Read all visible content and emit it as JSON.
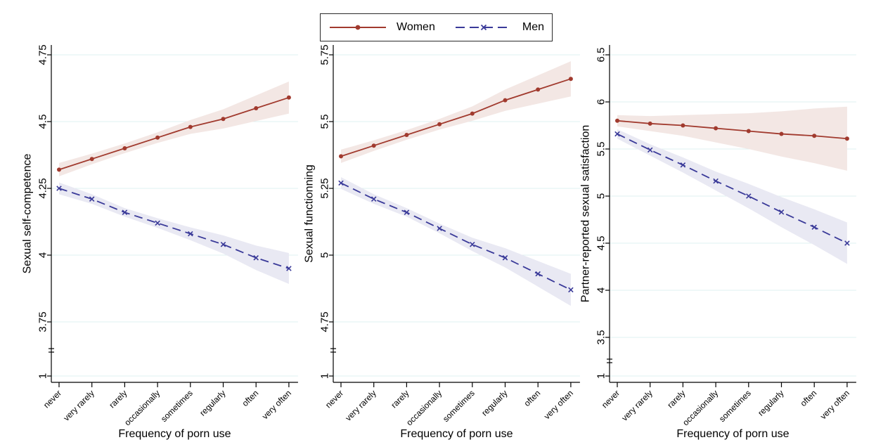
{
  "figure": {
    "background": "#ffffff",
    "grid_color": "#dff0f1",
    "axis_color": "#000000"
  },
  "legend": {
    "items": [
      {
        "label": "Women",
        "color": "#a13a2e",
        "line_style": "solid",
        "marker": "circle"
      },
      {
        "label": "Men",
        "color": "#3a3a99",
        "line_style": "dashed",
        "marker": "x"
      }
    ]
  },
  "chart_data": [
    {
      "type": "line",
      "panel": "sexual-self-competence",
      "ylabel": "Sexual self-competence",
      "xlabel": "Frequency of porn use",
      "categories": [
        "never",
        "very rarely",
        "rarely",
        "occasionally",
        "sometimes",
        "regularly",
        "often",
        "very often"
      ],
      "yticks": [
        "4.75",
        "4.5",
        "4.25",
        "4",
        "3.75"
      ],
      "ytick_values": [
        4.75,
        4.5,
        4.25,
        4.0,
        3.75
      ],
      "y_break_label": "1",
      "ylim": [
        3.75,
        4.75
      ],
      "axis_break": true,
      "grid": true,
      "legend_position": "top-center",
      "series": [
        {
          "name": "Women",
          "color": "#a13a2e",
          "band_color": "#f3e7e4",
          "style": "solid",
          "marker": "circle",
          "values": [
            4.32,
            4.36,
            4.4,
            4.44,
            4.48,
            4.51,
            4.55,
            4.59
          ],
          "ci_half": [
            0.025,
            0.02,
            0.018,
            0.02,
            0.026,
            0.036,
            0.048,
            0.06
          ]
        },
        {
          "name": "Men",
          "color": "#3a3a99",
          "band_color": "#e9e9f3",
          "style": "dashed",
          "marker": "x",
          "values": [
            4.25,
            4.21,
            4.16,
            4.12,
            4.08,
            4.04,
            3.99,
            3.95
          ],
          "ci_half": [
            0.022,
            0.018,
            0.016,
            0.018,
            0.024,
            0.034,
            0.046,
            0.058
          ]
        }
      ]
    },
    {
      "type": "line",
      "panel": "sexual-functionning",
      "ylabel": "Sexual functionning",
      "xlabel": "Frequency of porn use",
      "categories": [
        "never",
        "very rarely",
        "rarely",
        "occasionally",
        "sometimes",
        "regularly",
        "often",
        "very often"
      ],
      "yticks": [
        "5.75",
        "5.5",
        "5.25",
        "5",
        "4.75"
      ],
      "ytick_values": [
        5.75,
        5.5,
        5.25,
        5.0,
        4.75
      ],
      "y_break_label": "1",
      "ylim": [
        4.75,
        5.75
      ],
      "axis_break": true,
      "grid": true,
      "series": [
        {
          "name": "Women",
          "color": "#a13a2e",
          "band_color": "#f3e7e4",
          "style": "solid",
          "marker": "circle",
          "values": [
            5.37,
            5.41,
            5.45,
            5.49,
            5.53,
            5.58,
            5.62,
            5.66
          ],
          "ci_half": [
            0.025,
            0.02,
            0.018,
            0.02,
            0.027,
            0.04,
            0.053,
            0.066
          ]
        },
        {
          "name": "Men",
          "color": "#3a3a99",
          "band_color": "#e9e9f3",
          "style": "dashed",
          "marker": "x",
          "values": [
            5.27,
            5.21,
            5.16,
            5.1,
            5.04,
            4.99,
            4.93,
            4.87
          ],
          "ci_half": [
            0.022,
            0.018,
            0.016,
            0.018,
            0.025,
            0.036,
            0.048,
            0.06
          ]
        }
      ]
    },
    {
      "type": "line",
      "panel": "partner-reported-sexual-satisfaction",
      "ylabel": "Partner-reported sexual satisfaction",
      "xlabel": "Frequency of porn use",
      "categories": [
        "never",
        "very rarely",
        "rarely",
        "occasionally",
        "sometimes",
        "regularly",
        "often",
        "very often"
      ],
      "yticks": [
        "6.5",
        "6",
        "5.5",
        "5",
        "4.5",
        "4",
        "3.5"
      ],
      "ytick_values": [
        6.5,
        6.0,
        5.5,
        5.0,
        4.5,
        4.0,
        3.5
      ],
      "y_break_label": "1",
      "ylim": [
        3.5,
        6.5
      ],
      "axis_break": true,
      "grid": true,
      "series": [
        {
          "name": "Women",
          "color": "#a13a2e",
          "band_color": "#f3e7e4",
          "style": "solid",
          "marker": "circle",
          "values": [
            5.8,
            5.77,
            5.75,
            5.72,
            5.69,
            5.66,
            5.64,
            5.61
          ],
          "ci_half": [
            0.06,
            0.08,
            0.11,
            0.15,
            0.19,
            0.24,
            0.29,
            0.34
          ]
        },
        {
          "name": "Men",
          "color": "#3a3a99",
          "band_color": "#e9e9f3",
          "style": "dashed",
          "marker": "x",
          "values": [
            5.66,
            5.49,
            5.33,
            5.16,
            5.0,
            4.83,
            4.67,
            4.5
          ],
          "ci_half": [
            0.05,
            0.06,
            0.08,
            0.1,
            0.13,
            0.16,
            0.19,
            0.22
          ]
        }
      ]
    }
  ]
}
